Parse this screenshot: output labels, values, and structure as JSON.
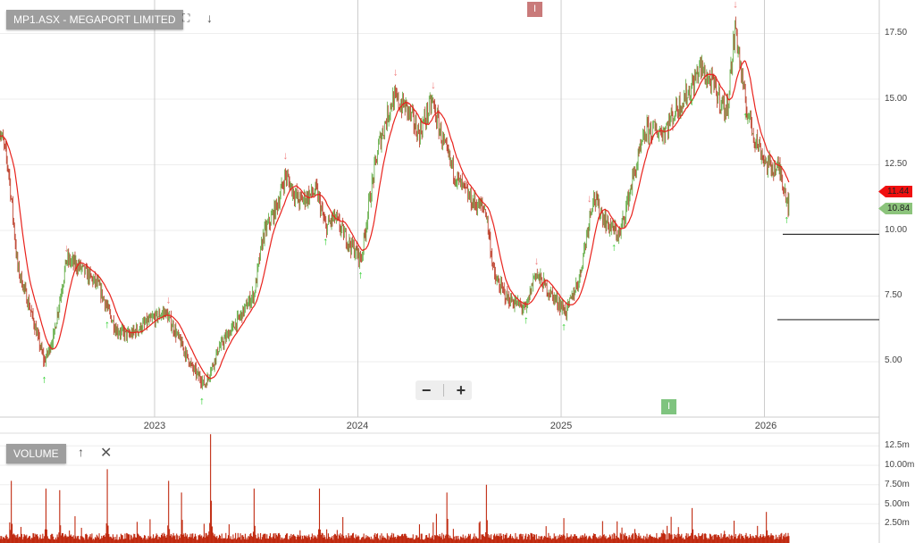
{
  "header": {
    "title": "MP1.ASX - MEGAPORT LIMITED",
    "fullscreen_icon": "expand-icon",
    "download_icon": "arrow-down-icon"
  },
  "volume_panel": {
    "title": "VOLUME",
    "move_up_icon": "arrow-up-icon",
    "close_icon": "close-icon"
  },
  "zoom_controls": {
    "minus": "−",
    "plus": "+"
  },
  "event_markers": [
    {
      "label": "I",
      "color": "#c97a7a"
    },
    {
      "label": "I",
      "color": "#7fc47f"
    }
  ],
  "price_labels": [
    {
      "value": "11.44",
      "color": "#f01010",
      "text_color": "#222"
    },
    {
      "value": "10.84",
      "color": "#8cc47c",
      "text_color": "#222"
    }
  ],
  "colors": {
    "up": "#5aa83c",
    "down": "#b8321c",
    "ma": "#e8221c",
    "volume": "#c0290f",
    "buy_arrow": "#22cc22",
    "sell_arrow": "#f08080"
  },
  "chart_data": [
    {
      "type": "candlestick",
      "title": "",
      "x_ticks": [
        "2023",
        "2024",
        "2025",
        "2026"
      ],
      "y_ticks": [
        "5.00",
        "7.50",
        "10.00",
        "12.50",
        "15.00",
        "17.50"
      ],
      "ylim": [
        3.3,
        18.5
      ],
      "xlim": [
        "2022-03-28",
        "2026-04-20"
      ],
      "grid": true,
      "overlay": "moving average (red line)",
      "close_points": [
        [
          "2022-03-28",
          14.0
        ],
        [
          "2022-04-14",
          12.3
        ],
        [
          "2022-04-30",
          8.6
        ],
        [
          "2022-05-24",
          6.9
        ],
        [
          "2022-06-17",
          5.0
        ],
        [
          "2022-07-03",
          5.9
        ],
        [
          "2022-07-27",
          8.9
        ],
        [
          "2022-08-20",
          8.6
        ],
        [
          "2022-09-22",
          7.9
        ],
        [
          "2022-10-24",
          6.2
        ],
        [
          "2022-11-17",
          6.0
        ],
        [
          "2022-12-19",
          6.5
        ],
        [
          "2023-01-20",
          6.9
        ],
        [
          "2023-02-13",
          5.9
        ],
        [
          "2023-03-09",
          4.8
        ],
        [
          "2023-04-02",
          4.1
        ],
        [
          "2023-04-26",
          5.5
        ],
        [
          "2023-05-28",
          6.5
        ],
        [
          "2023-06-29",
          7.6
        ],
        [
          "2023-07-15",
          9.8
        ],
        [
          "2023-08-08",
          10.9
        ],
        [
          "2023-08-24",
          12.1
        ],
        [
          "2023-09-17",
          11.1
        ],
        [
          "2023-10-19",
          11.5
        ],
        [
          "2023-11-04",
          10.1
        ],
        [
          "2023-11-20",
          10.5
        ],
        [
          "2023-12-14",
          9.6
        ],
        [
          "2024-01-07",
          8.9
        ],
        [
          "2024-01-23",
          11.3
        ],
        [
          "2024-02-08",
          13.3
        ],
        [
          "2024-03-03",
          15.0
        ],
        [
          "2024-03-27",
          14.7
        ],
        [
          "2024-04-20",
          13.7
        ],
        [
          "2024-05-14",
          14.9
        ],
        [
          "2024-06-07",
          13.0
        ],
        [
          "2024-07-01",
          11.8
        ],
        [
          "2024-07-25",
          11.1
        ],
        [
          "2024-08-18",
          10.8
        ],
        [
          "2024-09-03",
          8.2
        ],
        [
          "2024-09-27",
          7.4
        ],
        [
          "2024-10-30",
          7.0
        ],
        [
          "2024-11-15",
          8.4
        ],
        [
          "2024-12-09",
          7.7
        ],
        [
          "2025-01-10",
          6.9
        ],
        [
          "2025-02-03",
          8.2
        ],
        [
          "2025-02-27",
          11.3
        ],
        [
          "2025-03-23",
          10.3
        ],
        [
          "2025-04-16",
          9.8
        ],
        [
          "2025-05-10",
          12.0
        ],
        [
          "2025-06-03",
          13.8
        ],
        [
          "2025-07-05",
          13.8
        ],
        [
          "2025-07-29",
          14.7
        ],
        [
          "2025-08-22",
          15.4
        ],
        [
          "2025-09-07",
          16.2
        ],
        [
          "2025-10-01",
          15.5
        ],
        [
          "2025-10-25",
          14.5
        ],
        [
          "2025-11-10",
          17.8
        ],
        [
          "2025-11-26",
          15.0
        ],
        [
          "2025-12-12",
          13.7
        ],
        [
          "2026-01-05",
          12.5
        ],
        [
          "2026-01-29",
          12.3
        ],
        [
          "2026-02-15",
          10.84
        ]
      ],
      "last_close": 10.84,
      "moving_average_last": 11.44,
      "horizontal_lines": [
        9.85,
        6.6
      ],
      "signals": [
        {
          "date": "2022-06-17",
          "type": "buy"
        },
        {
          "date": "2022-07-27",
          "type": "sell"
        },
        {
          "date": "2022-10-08",
          "type": "buy"
        },
        {
          "date": "2023-01-26",
          "type": "sell"
        },
        {
          "date": "2023-03-27",
          "type": "buy"
        },
        {
          "date": "2023-08-24",
          "type": "sell"
        },
        {
          "date": "2023-11-04",
          "type": "buy"
        },
        {
          "date": "2024-01-06",
          "type": "buy"
        },
        {
          "date": "2024-03-09",
          "type": "sell"
        },
        {
          "date": "2024-05-16",
          "type": "sell"
        },
        {
          "date": "2024-10-30",
          "type": "buy"
        },
        {
          "date": "2024-11-18",
          "type": "sell"
        },
        {
          "date": "2025-01-06",
          "type": "buy"
        },
        {
          "date": "2025-02-21",
          "type": "sell"
        },
        {
          "date": "2025-04-06",
          "type": "buy"
        },
        {
          "date": "2025-08-24",
          "type": "buy"
        },
        {
          "date": "2025-11-10",
          "type": "sell"
        },
        {
          "date": "2025-11-28",
          "type": "buy"
        },
        {
          "date": "2026-02-10",
          "type": "buy"
        }
      ]
    },
    {
      "type": "bar",
      "title": "VOLUME",
      "y_ticks": [
        "2.50m",
        "5.00m",
        "7.50m",
        "10.00m",
        "12.5m"
      ],
      "ylim": [
        0,
        14
      ],
      "typical_volume_m": 1.0,
      "spikes": [
        [
          "2022-04-19",
          8.0
        ],
        [
          "2022-06-20",
          7.0
        ],
        [
          "2022-07-15",
          6.8
        ],
        [
          "2022-10-08",
          9.5
        ],
        [
          "2023-01-26",
          8.0
        ],
        [
          "2023-02-19",
          6.5
        ],
        [
          "2023-04-12",
          14.0
        ],
        [
          "2023-06-29",
          7.0
        ],
        [
          "2023-10-24",
          7.0
        ],
        [
          "2024-06-10",
          6.5
        ],
        [
          "2024-08-20",
          7.5
        ],
        [
          "2025-08-24",
          4.5
        ],
        [
          "2026-01-05",
          4.0
        ]
      ]
    }
  ]
}
